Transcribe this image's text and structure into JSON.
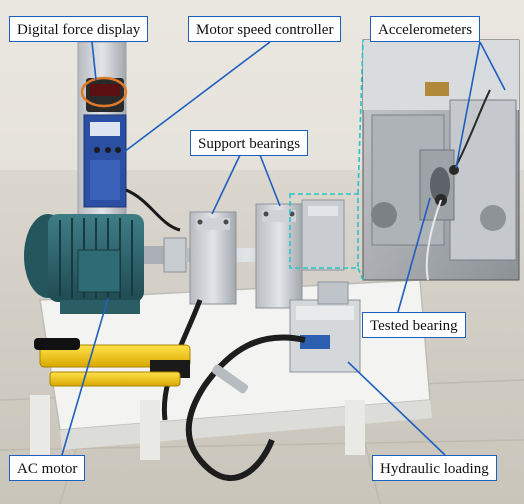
{
  "labels": {
    "digital_force_display": "Digital force display",
    "motor_speed_controller": "Motor speed controller",
    "accelerometers": "Accelerometers",
    "support_bearings": "Support bearings",
    "tested_bearing": "Tested bearing",
    "ac_motor": "AC motor",
    "hydraulic_loading": "Hydraulic loading"
  },
  "colors": {
    "callout_border": "#1f5fbf",
    "leader_line": "#1f5fbf",
    "inset_outline": "#29c3c8"
  }
}
